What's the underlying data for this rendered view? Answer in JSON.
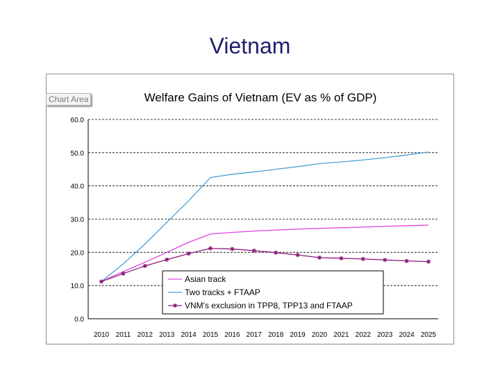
{
  "slide": {
    "title": "Vietnam"
  },
  "chart_area_label": "Chart Area",
  "chart_data": {
    "type": "line",
    "title": "Welfare Gains of Vietnam (EV as % of GDP)",
    "xlabel": "",
    "ylabel": "",
    "categories": [
      "2010",
      "2011",
      "2012",
      "2013",
      "2014",
      "2015",
      "2016",
      "2017",
      "2018",
      "2019",
      "2020",
      "2021",
      "2022",
      "2023",
      "2024",
      "2025"
    ],
    "yticks": [
      "0.0",
      "10.0",
      "20.0",
      "30.0",
      "40.0",
      "50.0",
      "60.0"
    ],
    "ylim": [
      0,
      60
    ],
    "grid": true,
    "legend_position": "bottom-center",
    "series": [
      {
        "name": "Asian track",
        "color": "#e040e0",
        "marker": "none",
        "values": [
          11.2,
          14.2,
          17.0,
          20.0,
          23.0,
          25.5,
          26.0,
          26.4,
          26.7,
          27.0,
          27.2,
          27.4,
          27.6,
          27.8,
          28.0,
          28.2
        ]
      },
      {
        "name": "Two tracks + FTAAP",
        "color": "#4a9fd5",
        "marker": "none",
        "values": [
          11.2,
          16.5,
          22.5,
          29.0,
          35.5,
          42.5,
          43.5,
          44.2,
          45.0,
          45.8,
          46.7,
          47.2,
          47.8,
          48.5,
          49.3,
          50.2
        ]
      },
      {
        "name": "VNM's exclusion in TPP8, TPP13 and FTAAP",
        "color": "#8b1a7a",
        "marker": "asterisk",
        "values": [
          11.2,
          13.6,
          15.9,
          17.8,
          19.6,
          21.2,
          21.0,
          20.5,
          19.9,
          19.2,
          18.4,
          18.2,
          18.0,
          17.7,
          17.4,
          17.2
        ]
      }
    ]
  }
}
